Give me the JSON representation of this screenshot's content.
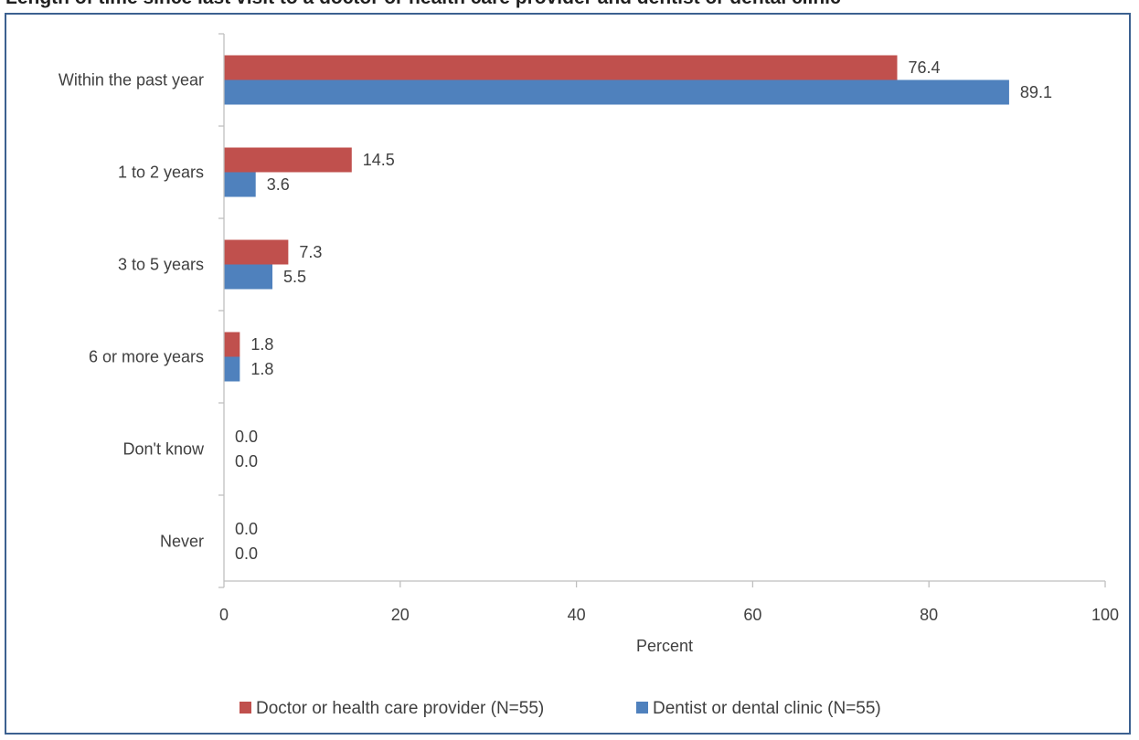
{
  "chart_data": {
    "type": "bar",
    "orientation": "horizontal",
    "title": "Length of time since last visit to a doctor or health care provider and dentist or dental clinic",
    "categories": [
      "Within the past year",
      "1 to 2 years",
      "3 to 5 years",
      "6 or more years",
      "Don't know",
      "Never"
    ],
    "series": [
      {
        "name": "Doctor or health care provider (N=55)",
        "color": "#c0504d",
        "values": [
          76.4,
          14.5,
          7.3,
          1.8,
          0.0,
          0.0
        ],
        "labels": [
          "76.4",
          "14.5",
          "7.3",
          "1.8",
          "0.0",
          "0.0"
        ]
      },
      {
        "name": "Dentist or dental clinic (N=55)",
        "color": "#4f81bd",
        "values": [
          89.1,
          3.6,
          5.5,
          1.8,
          0.0,
          0.0
        ],
        "labels": [
          "89.1",
          "3.6",
          "5.5",
          "1.8",
          "0.0",
          "0.0"
        ]
      }
    ],
    "xlabel": "Percent",
    "ylabel": "",
    "xlim": [
      0,
      100
    ],
    "xticks": [
      "0",
      "20",
      "40",
      "60",
      "80",
      "100"
    ],
    "grid": false,
    "legend_position": "bottom"
  },
  "colors": {
    "axis": "#bfbfbf",
    "frame": "#3c6190",
    "text": "#404040"
  }
}
